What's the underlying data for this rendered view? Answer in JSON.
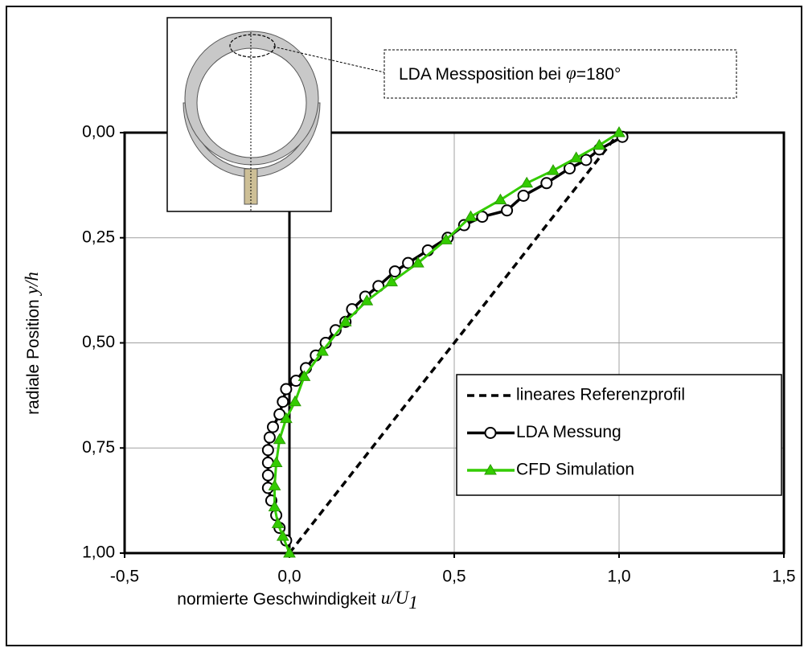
{
  "chart_data": {
    "type": "line",
    "xlabel": {
      "text": "normierte Geschwindigkeit",
      "math": "u/U",
      "sub": "1"
    },
    "ylabel": {
      "text": "radiale Position",
      "math": "y/h"
    },
    "annotation": {
      "text": "LDA Messposition bei",
      "symbol": "φ",
      "rest": "=180°"
    },
    "xlim": [
      -0.5,
      1.5
    ],
    "xticks": [
      {
        "value": -0.5,
        "label": "-0,5"
      },
      {
        "value": 0,
        "label": "0,0"
      },
      {
        "value": 0.5,
        "label": "0,5"
      },
      {
        "value": 1,
        "label": "1,0"
      },
      {
        "value": 1.5,
        "label": "1,5"
      }
    ],
    "ylim": [
      1,
      0
    ],
    "yticks": [
      {
        "value": 0,
        "label": "0,00"
      },
      {
        "value": 0.25,
        "label": "0,25"
      },
      {
        "value": 0.5,
        "label": "0,50"
      },
      {
        "value": 0.75,
        "label": "0,75"
      },
      {
        "value": 1,
        "label": "1,00"
      }
    ],
    "grid": true,
    "legend": "lower right",
    "series": [
      {
        "name": "lineares Referenzprofil",
        "color": "#000000",
        "dash": true,
        "marker": "none",
        "x": [
          0,
          1
        ],
        "y": [
          1,
          0
        ]
      },
      {
        "name": "LDA Messung",
        "color": "#000000",
        "dash": false,
        "marker": "circle",
        "x": [
          1.01,
          0.94,
          0.9,
          0.85,
          0.78,
          0.71,
          0.66,
          0.585,
          0.53,
          0.48,
          0.42,
          0.36,
          0.32,
          0.27,
          0.23,
          0.19,
          0.17,
          0.14,
          0.11,
          0.08,
          0.05,
          0.02,
          -0.01,
          -0.02,
          -0.03,
          -0.05,
          -0.06,
          -0.065,
          -0.065,
          -0.065,
          -0.065,
          -0.055,
          -0.04,
          -0.03,
          -0.01
        ],
        "y": [
          0.01,
          0.04,
          0.065,
          0.085,
          0.12,
          0.15,
          0.185,
          0.2,
          0.22,
          0.25,
          0.28,
          0.31,
          0.33,
          0.365,
          0.39,
          0.42,
          0.45,
          0.47,
          0.5,
          0.53,
          0.56,
          0.59,
          0.61,
          0.64,
          0.67,
          0.7,
          0.725,
          0.755,
          0.785,
          0.815,
          0.845,
          0.875,
          0.91,
          0.94,
          0.97
        ]
      },
      {
        "name": "CFD Simulation",
        "color": "#33cc00",
        "dash": false,
        "marker": "triangle",
        "x": [
          1,
          0.94,
          0.87,
          0.8,
          0.72,
          0.64,
          0.55,
          0.475,
          0.39,
          0.31,
          0.235,
          0.17,
          0.1,
          0.045,
          0.017,
          -0.01,
          -0.03,
          -0.04,
          -0.045,
          -0.045,
          -0.035,
          -0.02,
          0
        ],
        "y": [
          0,
          0.03,
          0.06,
          0.09,
          0.12,
          0.16,
          0.2,
          0.255,
          0.31,
          0.355,
          0.4,
          0.45,
          0.52,
          0.58,
          0.64,
          0.68,
          0.73,
          0.785,
          0.84,
          0.89,
          0.93,
          0.96,
          1
        ]
      }
    ]
  }
}
